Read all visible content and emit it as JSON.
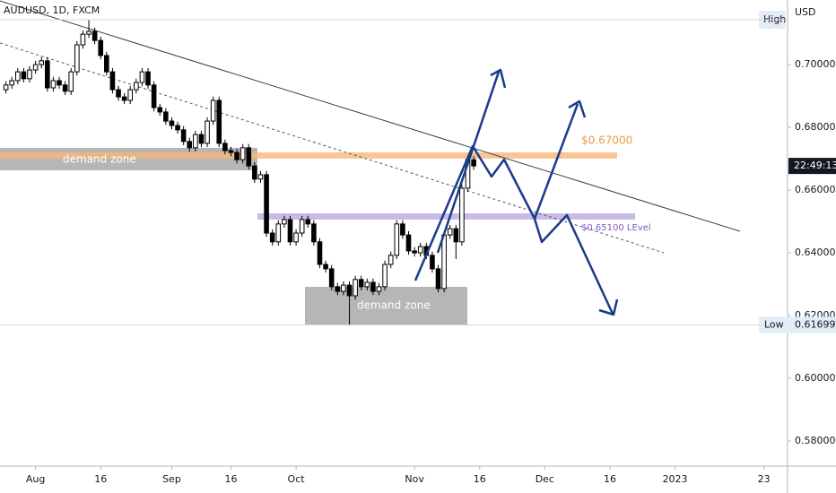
{
  "chart_data": {
    "type": "candlestick",
    "title": "AUDUSD, 1D, FXCM",
    "currency": "USD",
    "x": [
      -5,
      -4,
      -3,
      -2,
      -1,
      0,
      1,
      2,
      3,
      4,
      5,
      6,
      7,
      8,
      9,
      10,
      11,
      12,
      13,
      14,
      15,
      16,
      17,
      18,
      19,
      20,
      21,
      22,
      23,
      24,
      25,
      26,
      27,
      28,
      29,
      30,
      31,
      32,
      33,
      34,
      35,
      36,
      37,
      38,
      39,
      40,
      41,
      42,
      43,
      44,
      45,
      46,
      47,
      48,
      49,
      50,
      51,
      52,
      53,
      54,
      55,
      56,
      57,
      58,
      59,
      60,
      61,
      62,
      63,
      64,
      65,
      66,
      67,
      68,
      69,
      70,
      71,
      72,
      73,
      74
    ],
    "open": [
      0.692,
      0.6935,
      0.6949,
      0.6977,
      0.6955,
      0.6983,
      0.7,
      0.7012,
      0.6926,
      0.6949,
      0.6935,
      0.6915,
      0.6977,
      0.7063,
      0.7097,
      0.7106,
      0.7077,
      0.7029,
      0.6977,
      0.692,
      0.6897,
      0.6886,
      0.692,
      0.6943,
      0.6977,
      0.6935,
      0.6863,
      0.6849,
      0.682,
      0.6806,
      0.6792,
      0.6755,
      0.6735,
      0.6777,
      0.6749,
      0.682,
      0.6886,
      0.6749,
      0.6726,
      0.672,
      0.6697,
      0.6735,
      0.6677,
      0.6635,
      0.6649,
      0.6463,
      0.6435,
      0.6492,
      0.6506,
      0.6435,
      0.6463,
      0.6506,
      0.6492,
      0.6435,
      0.6363,
      0.6349,
      0.6292,
      0.6277,
      0.6297,
      0.6263,
      0.6315,
      0.6292,
      0.6306,
      0.6277,
      0.6292,
      0.6363,
      0.6392,
      0.6492,
      0.6457,
      0.6406,
      0.64,
      0.642,
      0.6392,
      0.6349,
      0.6286,
      0.6457,
      0.6477,
      0.6435,
      0.6606,
      0.6697
    ],
    "high": [
      0.6947,
      0.6961,
      0.6989,
      0.6989,
      0.6995,
      0.7012,
      0.7024,
      0.7024,
      0.6961,
      0.6961,
      0.6947,
      0.6989,
      0.7075,
      0.7109,
      0.7143,
      0.7118,
      0.7089,
      0.7041,
      0.6989,
      0.6932,
      0.6909,
      0.6932,
      0.6955,
      0.6989,
      0.6989,
      0.6947,
      0.6875,
      0.6861,
      0.6832,
      0.6818,
      0.6804,
      0.6767,
      0.6789,
      0.6789,
      0.6832,
      0.6898,
      0.6898,
      0.6761,
      0.6738,
      0.6732,
      0.6747,
      0.6747,
      0.6689,
      0.6661,
      0.6661,
      0.6475,
      0.6504,
      0.6518,
      0.6518,
      0.6475,
      0.6518,
      0.6518,
      0.6504,
      0.6447,
      0.6375,
      0.6361,
      0.6304,
      0.6309,
      0.6309,
      0.6327,
      0.6327,
      0.6318,
      0.6318,
      0.6304,
      0.6375,
      0.6404,
      0.6504,
      0.6504,
      0.6469,
      0.6418,
      0.6432,
      0.6432,
      0.6404,
      0.6361,
      0.6469,
      0.6489,
      0.6489,
      0.6618,
      0.6709,
      0.6709
    ],
    "low": [
      0.6908,
      0.6923,
      0.6937,
      0.6943,
      0.6943,
      0.6971,
      0.6988,
      0.6914,
      0.6914,
      0.6923,
      0.6903,
      0.6903,
      0.6965,
      0.7051,
      0.7085,
      0.7065,
      0.7017,
      0.6965,
      0.6908,
      0.6885,
      0.6874,
      0.6874,
      0.6908,
      0.6931,
      0.6923,
      0.6851,
      0.6837,
      0.6808,
      0.6794,
      0.678,
      0.6743,
      0.6723,
      0.6723,
      0.6737,
      0.6737,
      0.6808,
      0.6737,
      0.6714,
      0.6708,
      0.6685,
      0.6685,
      0.6665,
      0.6623,
      0.6623,
      0.6451,
      0.6423,
      0.6423,
      0.648,
      0.6423,
      0.6423,
      0.6451,
      0.648,
      0.6423,
      0.6351,
      0.6337,
      0.628,
      0.6265,
      0.6265,
      0.617,
      0.6251,
      0.628,
      0.628,
      0.6265,
      0.6265,
      0.628,
      0.6351,
      0.638,
      0.6445,
      0.6394,
      0.6388,
      0.6388,
      0.638,
      0.6337,
      0.6274,
      0.6274,
      0.6445,
      0.638,
      0.6423,
      0.6594,
      0.6665
    ],
    "close": [
      0.6935,
      0.6949,
      0.6977,
      0.6955,
      0.6983,
      0.7,
      0.7012,
      0.6926,
      0.6949,
      0.6935,
      0.6915,
      0.6977,
      0.7063,
      0.7097,
      0.7106,
      0.7077,
      0.7029,
      0.6977,
      0.692,
      0.6897,
      0.6886,
      0.692,
      0.6943,
      0.6977,
      0.6935,
      0.6863,
      0.6849,
      0.682,
      0.6806,
      0.6792,
      0.6755,
      0.6735,
      0.6777,
      0.6749,
      0.682,
      0.6886,
      0.6749,
      0.6726,
      0.672,
      0.6697,
      0.6735,
      0.6677,
      0.6635,
      0.6649,
      0.6463,
      0.6435,
      0.6492,
      0.6506,
      0.6435,
      0.6463,
      0.6506,
      0.6492,
      0.6435,
      0.6363,
      0.6349,
      0.6292,
      0.6277,
      0.6297,
      0.6263,
      0.6315,
      0.6292,
      0.6306,
      0.6277,
      0.6292,
      0.6363,
      0.6392,
      0.6492,
      0.6457,
      0.6406,
      0.64,
      0.642,
      0.6392,
      0.6349,
      0.6286,
      0.6457,
      0.6477,
      0.6435,
      0.6606,
      0.6697,
      0.6677
    ],
    "up_color": "#ffffff",
    "down_color": "#000000",
    "xlim": [
      -6,
      127
    ],
    "xticks": [
      {
        "value": 0,
        "label": "Aug"
      },
      {
        "value": 11,
        "label": "16"
      },
      {
        "value": 23,
        "label": "Sep"
      },
      {
        "value": 33,
        "label": "16"
      },
      {
        "value": 44,
        "label": "Oct"
      },
      {
        "value": 64,
        "label": "Nov"
      },
      {
        "value": 75,
        "label": "16"
      },
      {
        "value": 86,
        "label": "Dec"
      },
      {
        "value": 97,
        "label": "16"
      },
      {
        "value": 108,
        "label": "2023"
      },
      {
        "value": 123,
        "label": "23"
      }
    ],
    "ylim": [
      0.572,
      0.7206
    ],
    "yticks": [
      {
        "value": 0.58,
        "label": "0.58000"
      },
      {
        "value": 0.6,
        "label": "0.60000"
      },
      {
        "value": 0.62,
        "label": "0.62000"
      },
      {
        "value": 0.64,
        "label": "0.64000"
      },
      {
        "value": 0.66,
        "label": "0.66000"
      },
      {
        "value": 0.68,
        "label": "0.68000"
      },
      {
        "value": 0.7,
        "label": "0.70000"
      }
    ],
    "grid": false,
    "high_label": "High",
    "low_label": "Low",
    "low_price": {
      "value": 0.61699,
      "label": "0.61699"
    },
    "countdown": "22:49:13",
    "annotations": [
      "demand zone",
      "demand zone",
      "$0.67000",
      "$0.65100 LEvel"
    ]
  }
}
